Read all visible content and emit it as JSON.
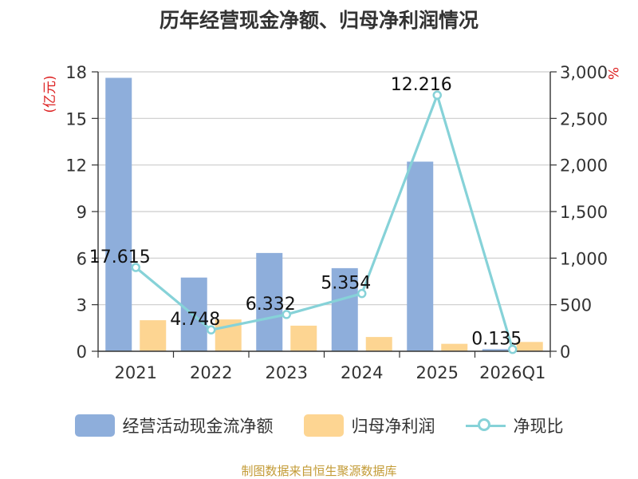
{
  "chart_data": {
    "type": "bar",
    "title": "历年经营现金净额、归母净利润情况",
    "categories": [
      "2021",
      "2022",
      "2023",
      "2024",
      "2025",
      "2026Q1"
    ],
    "ylabel": "(亿元)",
    "y2label": "%",
    "ylim": [
      0,
      18
    ],
    "y_ticks": [
      0,
      3,
      6,
      9,
      12,
      15,
      18
    ],
    "y2lim": [
      0,
      3000
    ],
    "y2_ticks": [
      "0",
      "500",
      "1,000",
      "1,500",
      "2,000",
      "2,500",
      "3,000"
    ],
    "grid": true,
    "legend_position": "bottom",
    "series": [
      {
        "name": "经营活动现金流净额",
        "type": "bar",
        "axis": "left",
        "color": "#8eaedb",
        "values": [
          17.615,
          4.748,
          6.332,
          5.354,
          12.216,
          0.135
        ],
        "labels": [
          "17.615",
          "4.748",
          "6.332",
          "5.354",
          "12.216",
          "0.135"
        ]
      },
      {
        "name": "归母净利润",
        "type": "bar",
        "axis": "left",
        "color": "#fdd592",
        "values": [
          2.0,
          2.05,
          1.65,
          0.92,
          0.48,
          0.6
        ]
      },
      {
        "name": "净现比",
        "type": "line",
        "axis": "right",
        "color": "#86d2d8",
        "values": [
          900,
          230,
          395,
          620,
          2750,
          20
        ]
      }
    ]
  },
  "source": "制图数据来自恒生聚源数据库"
}
